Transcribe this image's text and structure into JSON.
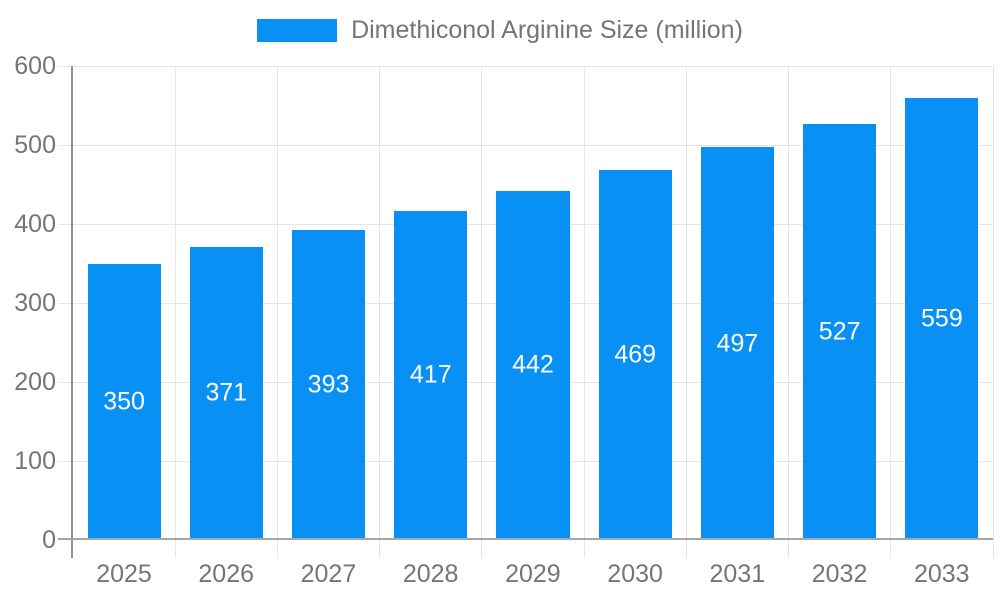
{
  "chart_data": {
    "type": "bar",
    "title": "Dimethiconol Arginine Size (million)",
    "legend_entries": [
      "Dimethiconol Arginine Size (million)"
    ],
    "legend_position": "top-center",
    "categories": [
      "2025",
      "2026",
      "2027",
      "2028",
      "2029",
      "2030",
      "2031",
      "2032",
      "2033"
    ],
    "values": [
      350,
      371,
      393,
      417,
      442,
      469,
      497,
      527,
      559
    ],
    "xlabel": "",
    "ylabel": "",
    "ylim": [
      0,
      600
    ],
    "yticks": [
      0,
      100,
      200,
      300,
      400,
      500,
      600
    ],
    "grid": true,
    "value_labels_shown": true,
    "colors": {
      "bar": "#0890F5",
      "grid": "#e6e6e6",
      "axis": "#a6a6a6",
      "axis_y": "#929292",
      "tick_text": "#757575",
      "value_label_text": "#ffffff",
      "background": "#ffffff"
    }
  }
}
